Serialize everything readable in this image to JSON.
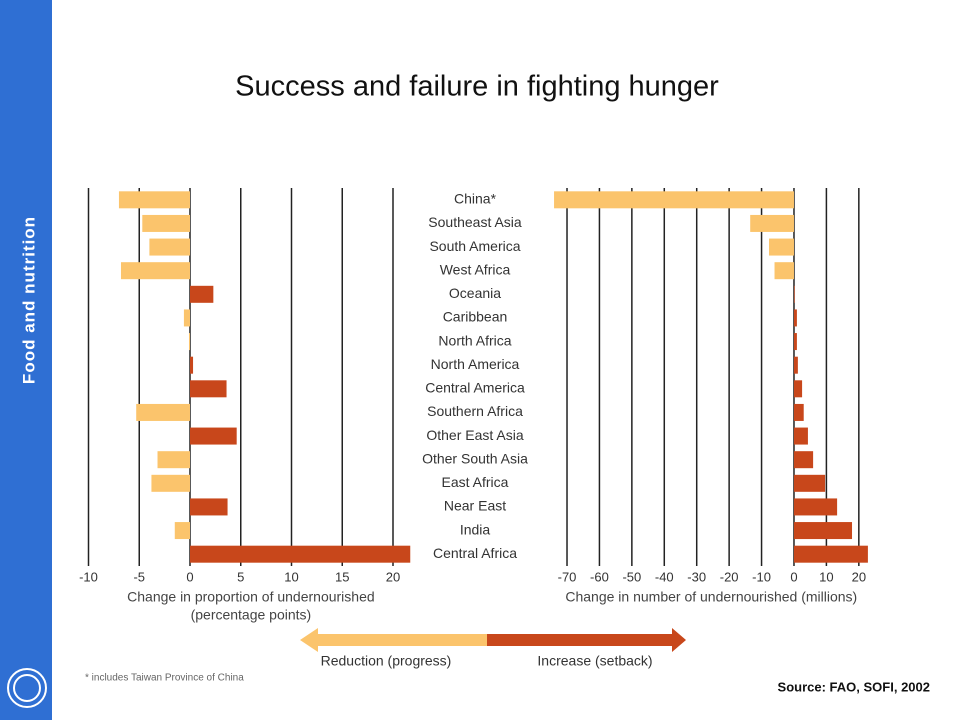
{
  "sidebar": "Food and nutrition",
  "title": "Success and failure in fighting hunger",
  "legend": {
    "reduction": "Reduction (progress)",
    "increase": "Increase (setback)",
    "negative_color": "#fbc46c",
    "positive_color": "#c8471b"
  },
  "footnote": "* includes Taiwan Province of China",
  "source": "Source: FAO, SOFI, 2002",
  "chart_data": [
    {
      "type": "bar",
      "orientation": "horizontal",
      "categories": [
        "China*",
        "Southeast Asia",
        "South America",
        "West Africa",
        "Oceania",
        "Caribbean",
        "North Africa",
        "North America",
        "Central America",
        "Southern Africa",
        "Other East Asia",
        "Other South Asia",
        "East Africa",
        "Near East",
        "India",
        "Central Africa"
      ],
      "values": [
        -7,
        -4.7,
        -4,
        -6.8,
        2.3,
        -0.6,
        -0.1,
        0.3,
        3.6,
        -5.3,
        4.6,
        -3.2,
        -3.8,
        3.7,
        -1.5,
        21.7
      ],
      "xlabel": [
        "Change in proportion of undernourished",
        "(percentage points)"
      ],
      "xlim": [
        -10,
        22
      ],
      "xticks": [
        -10,
        -5,
        0,
        5,
        10,
        15,
        20
      ],
      "grid": true
    },
    {
      "type": "bar",
      "orientation": "horizontal",
      "values": [
        -74,
        -13.5,
        -7.7,
        -6,
        0.2,
        0.9,
        0.9,
        1.2,
        2.5,
        3,
        4.3,
        5.9,
        9.6,
        13.3,
        17.9,
        22.8
      ],
      "xlabel": [
        "Change in number of undernourished (millions)"
      ],
      "xlim": [
        -75,
        24
      ],
      "xticks": [
        -70,
        -60,
        -50,
        -40,
        -30,
        -20,
        -10,
        0,
        10,
        20
      ],
      "grid": true
    }
  ]
}
